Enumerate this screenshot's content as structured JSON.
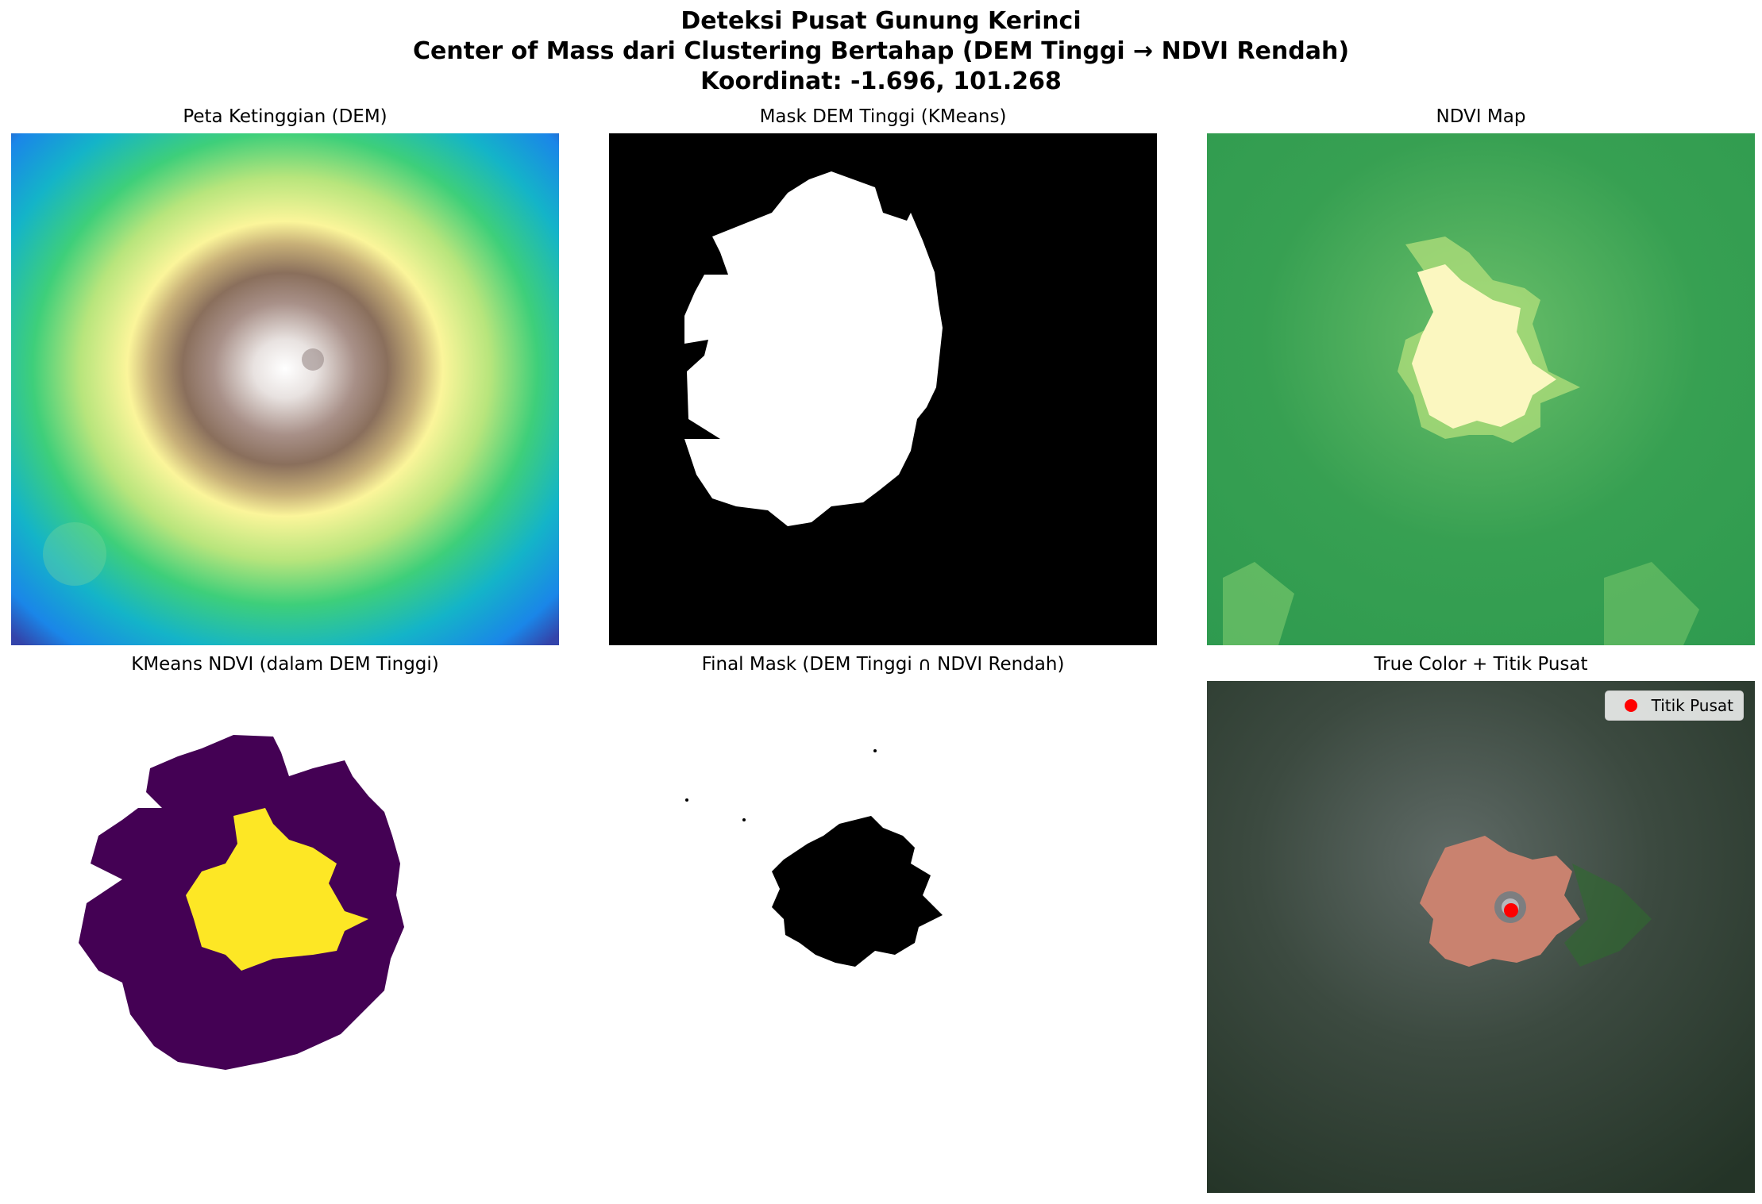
{
  "suptitle": {
    "line1": "Deteksi Pusat Gunung Kerinci",
    "line2": "Center of Mass dari Clustering Bertahap (DEM Tinggi → NDVI Rendah)",
    "line3": "Koordinat: -1.696, 101.268"
  },
  "panels": {
    "dem": {
      "title": "Peta Ketinggian (DEM)"
    },
    "mask_dem": {
      "title": "Mask DEM Tinggi (KMeans)"
    },
    "ndvi": {
      "title": "NDVI Map"
    },
    "kmeans_ndvi": {
      "title": "KMeans NDVI (dalam DEM Tinggi)"
    },
    "final_mask": {
      "title": "Final Mask (DEM Tinggi ∩ NDVI Rendah)"
    },
    "true_color": {
      "title": "True Color + Titik Pusat",
      "legend_label": "Titik Pusat",
      "marker_color": "#ff0000"
    }
  },
  "colors": {
    "dem_colormap": "terrain",
    "ndvi_colormap": "YlGn",
    "kmeans_low": "#440154",
    "kmeans_high": "#fde725"
  }
}
